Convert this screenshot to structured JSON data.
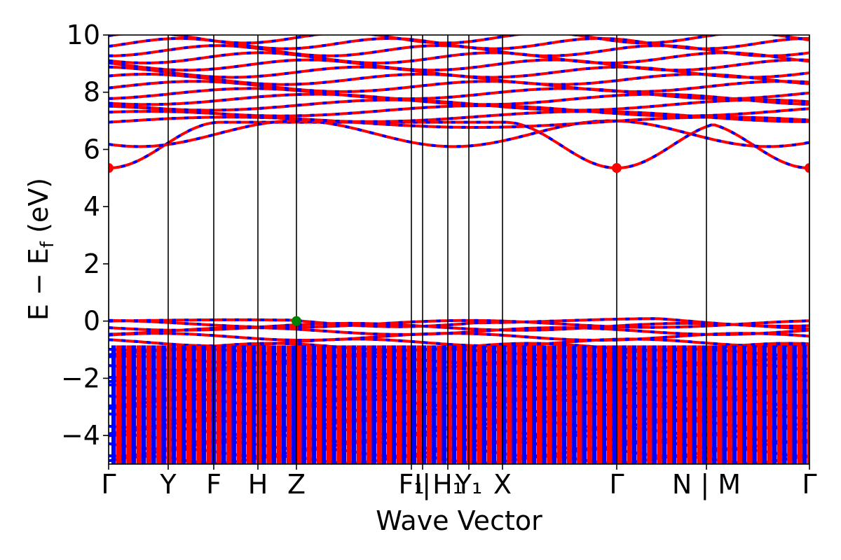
{
  "chart_data": {
    "type": "line",
    "xlabel": "Wave Vector",
    "ylabel_parts": {
      "main": "E − E",
      "sub": "f",
      "unit": " (eV)"
    },
    "ylim": [
      -5,
      10
    ],
    "yticks": [
      {
        "value": 10,
        "label": "10"
      },
      {
        "value": 8,
        "label": "8"
      },
      {
        "value": 6,
        "label": "6"
      },
      {
        "value": 4,
        "label": "4"
      },
      {
        "value": 2,
        "label": "2"
      },
      {
        "value": 0,
        "label": "0"
      },
      {
        "value": -2,
        "label": "−2"
      },
      {
        "value": -4,
        "label": "−4"
      }
    ],
    "kpath": [
      {
        "label": "Γ",
        "x": 0.0
      },
      {
        "label": "Y",
        "x": 0.085
      },
      {
        "label": "F",
        "x": 0.15
      },
      {
        "label": "H",
        "x": 0.213
      },
      {
        "label": "Z",
        "x": 0.268
      },
      {
        "label": "F₁",
        "x": 0.432
      },
      {
        "label": "I|",
        "x": 0.448
      },
      {
        "label": "H₁",
        "x": 0.484
      },
      {
        "label": "Y₁",
        "x": 0.514
      },
      {
        "label": "X",
        "x": 0.562
      },
      {
        "label": "Γ",
        "x": 0.725
      },
      {
        "label": "N | M",
        "x": 0.853
      },
      {
        "label": "Γ",
        "x": 1.0
      }
    ],
    "band_edges": {
      "cbm": {
        "value": 5.35,
        "x": [
          0.0,
          0.725,
          1.0
        ],
        "color": "#ff0000"
      },
      "vbm": {
        "value": 0.0,
        "x": [
          0.268
        ],
        "color": "#008000"
      }
    },
    "series": [
      {
        "color": "#ff0000"
      },
      {
        "color": "#0000ff"
      }
    ]
  }
}
